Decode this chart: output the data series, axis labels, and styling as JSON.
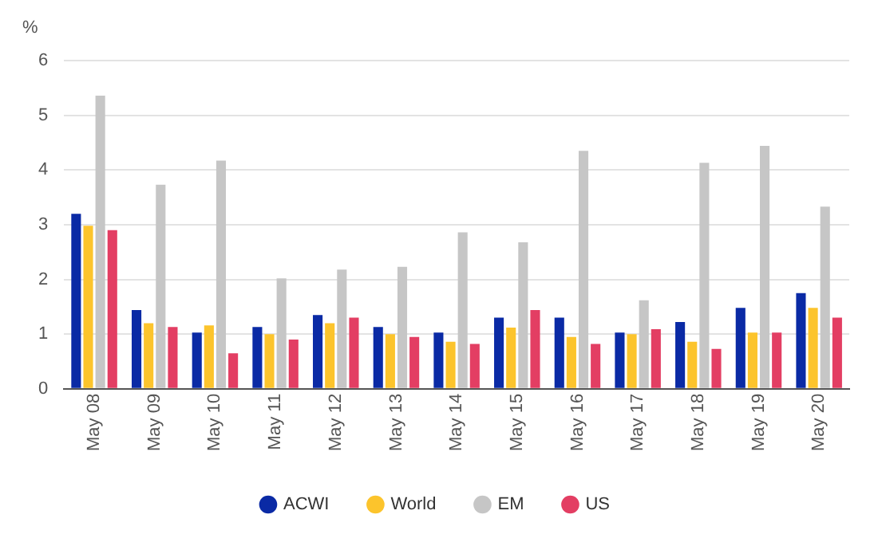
{
  "chart_data": {
    "type": "bar",
    "ylabel": "%",
    "categories": [
      "May 08",
      "May 09",
      "May 10",
      "May 11",
      "May 12",
      "May 13",
      "May 14",
      "May 15",
      "May 16",
      "May 17",
      "May 18",
      "May 19",
      "May 20"
    ],
    "series": [
      {
        "name": "ACWI",
        "color": "#0a2aa5",
        "values": [
          3.2,
          1.44,
          1.03,
          1.13,
          1.35,
          1.13,
          1.03,
          1.3,
          1.3,
          1.03,
          1.22,
          1.48,
          1.75
        ]
      },
      {
        "name": "World",
        "color": "#fcc42c",
        "values": [
          2.98,
          1.2,
          1.16,
          1.0,
          1.2,
          1.0,
          0.86,
          1.12,
          0.95,
          1.0,
          0.86,
          1.03,
          1.48
        ]
      },
      {
        "name": "EM",
        "color": "#c6c6c6",
        "values": [
          5.36,
          3.73,
          4.17,
          2.02,
          2.18,
          2.23,
          2.86,
          2.68,
          4.35,
          1.62,
          4.13,
          4.44,
          3.33
        ]
      },
      {
        "name": "US",
        "color": "#e33e63",
        "values": [
          2.9,
          1.13,
          0.65,
          0.9,
          1.3,
          0.95,
          0.82,
          1.44,
          0.82,
          1.09,
          0.73,
          1.03,
          1.3
        ]
      }
    ],
    "ylim": [
      0,
      6
    ],
    "yticks": [
      0,
      1,
      2,
      3,
      4,
      5,
      6
    ],
    "grid": "y",
    "legend": "bottom"
  }
}
